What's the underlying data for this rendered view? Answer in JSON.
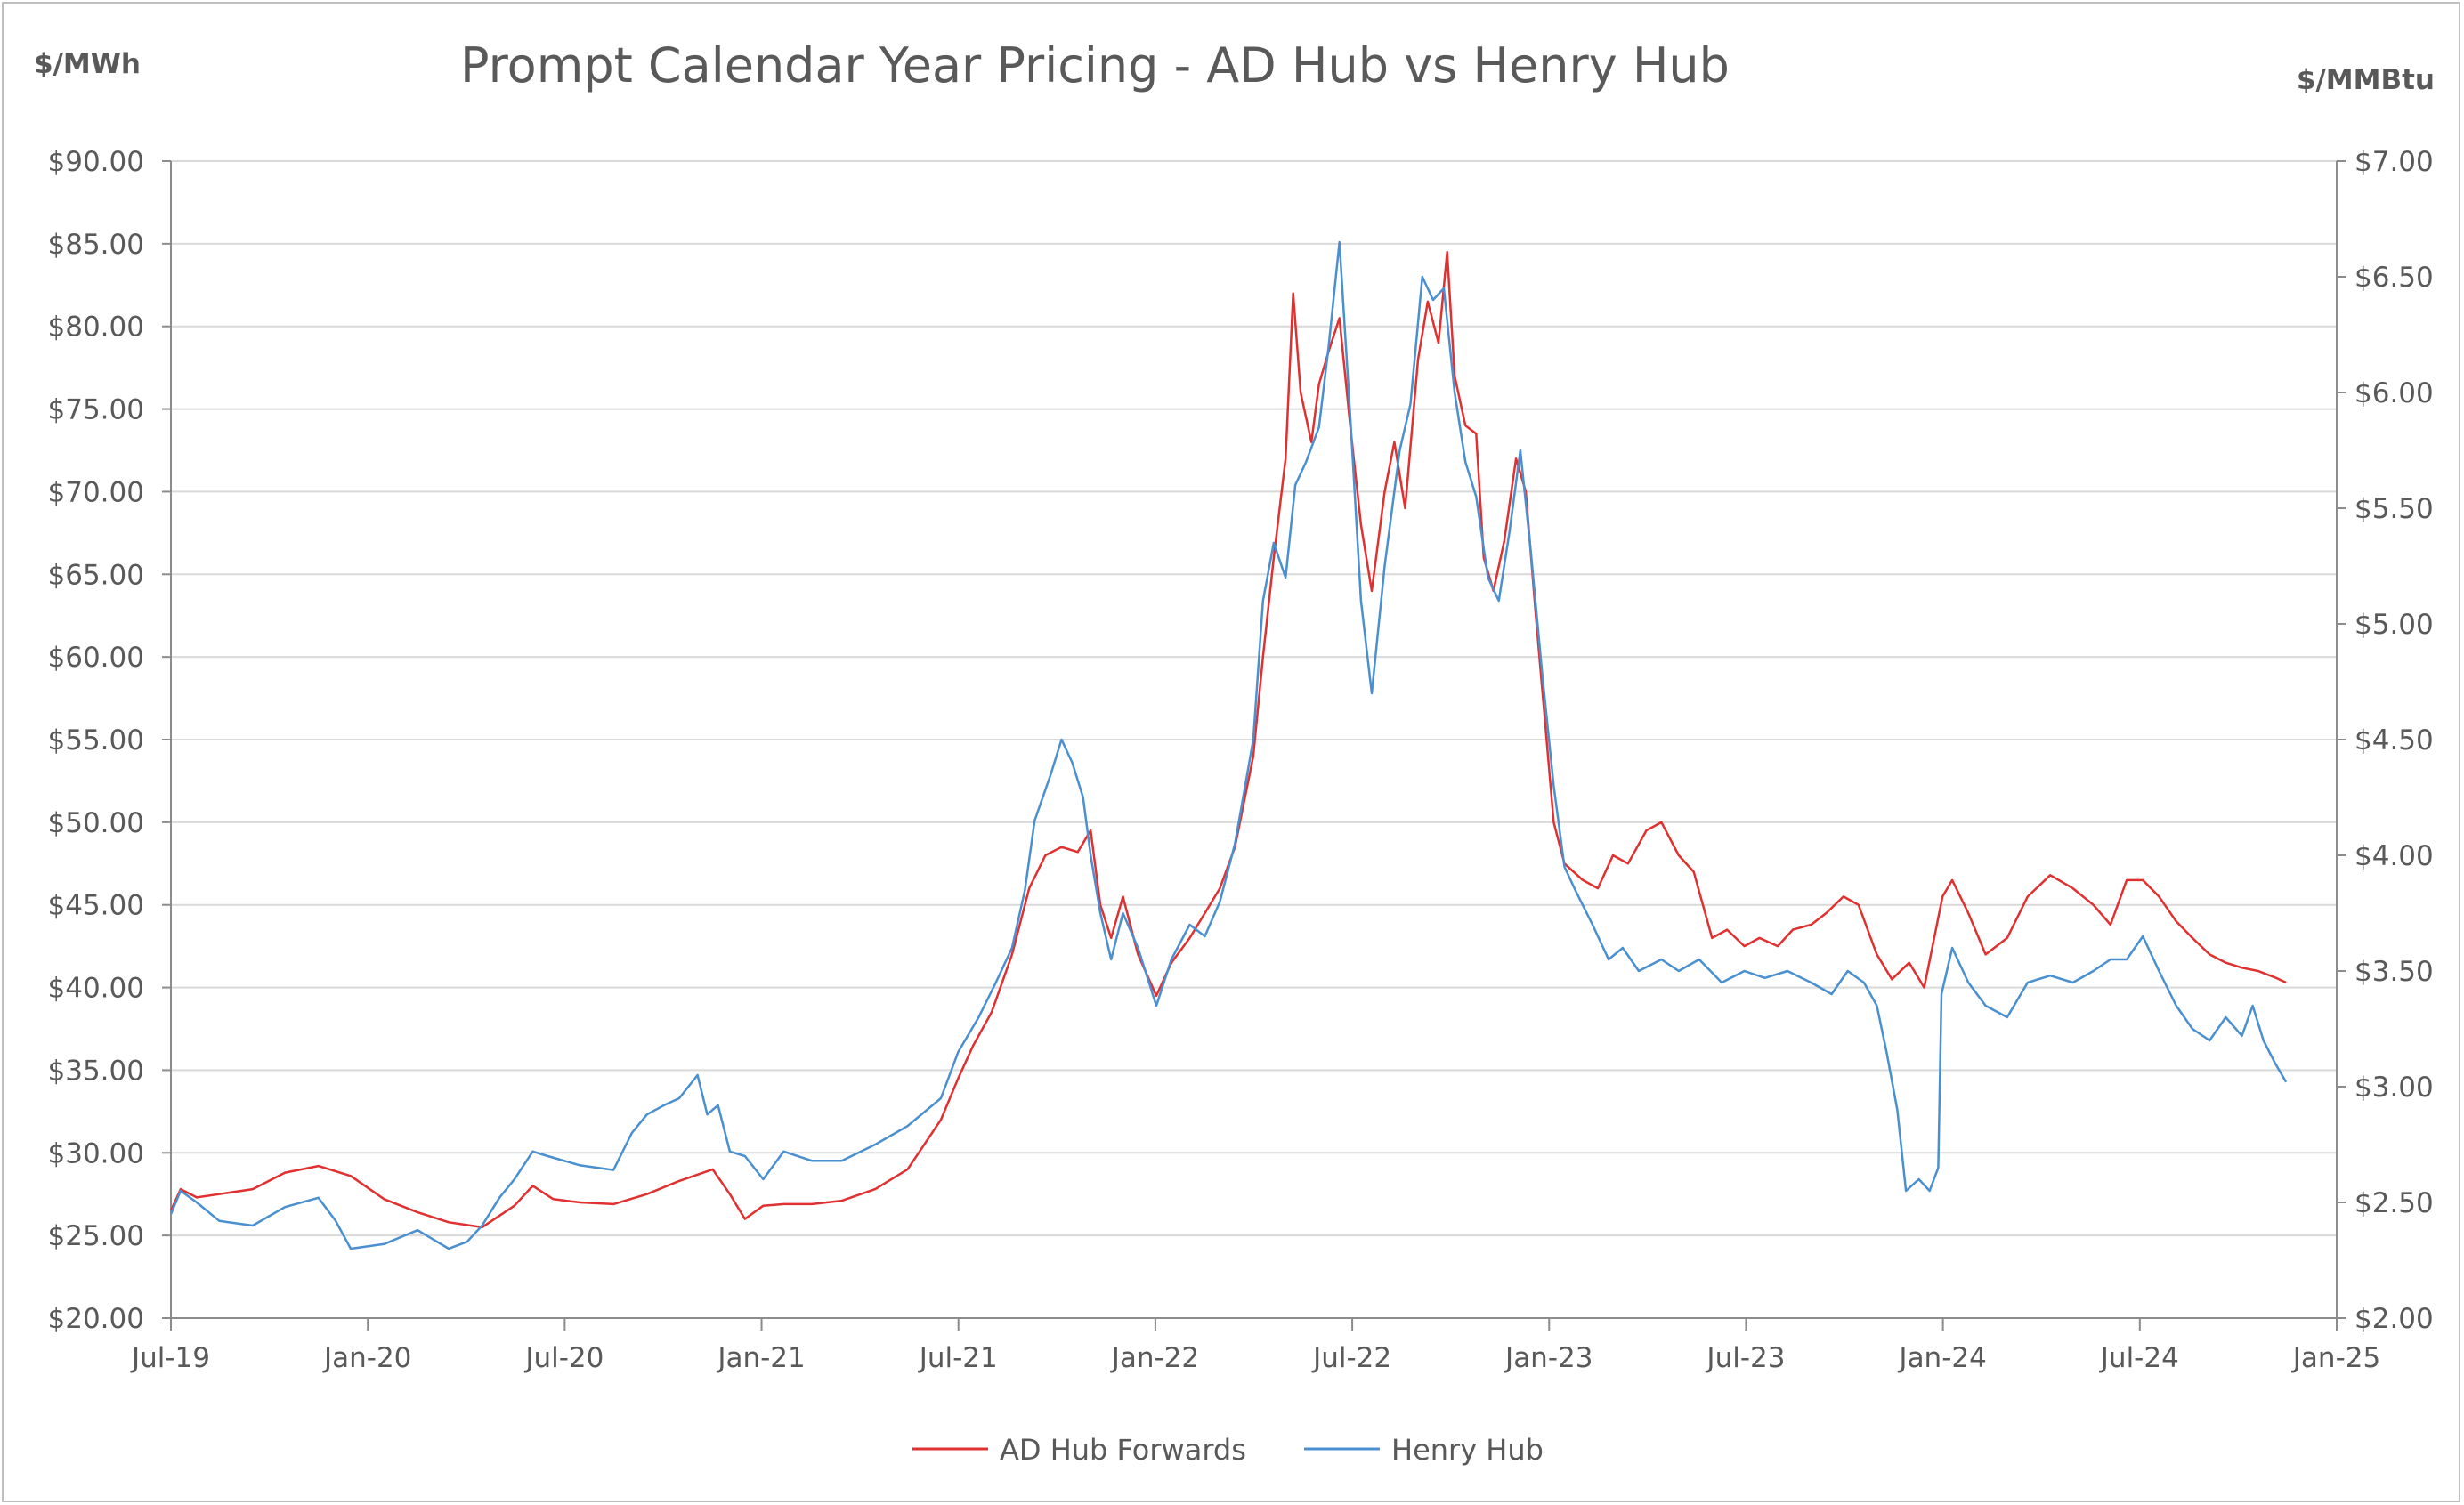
{
  "chart_data": {
    "type": "line",
    "title": "Prompt Calendar Year Pricing - AD Hub vs Henry Hub",
    "ylabel_left": "$/MWh",
    "ylabel_right": "$/MMBtu",
    "ylim_left": [
      20,
      90
    ],
    "ylim_right": [
      2.0,
      7.0
    ],
    "xlim": [
      "2019-07-01",
      "2025-01-01"
    ],
    "x_ticks": [
      "Jul-19",
      "Jan-20",
      "Jul-20",
      "Jan-21",
      "Jul-21",
      "Jan-22",
      "Jul-22",
      "Jan-23",
      "Jul-23",
      "Jan-24",
      "Jul-24",
      "Jan-25"
    ],
    "y_ticks_left": [
      "$20.00",
      "$25.00",
      "$30.00",
      "$35.00",
      "$40.00",
      "$45.00",
      "$50.00",
      "$55.00",
      "$60.00",
      "$65.00",
      "$70.00",
      "$75.00",
      "$80.00",
      "$85.00",
      "$90.00"
    ],
    "y_ticks_right": [
      "$2.00",
      "$2.50",
      "$3.00",
      "$3.50",
      "$4.00",
      "$4.50",
      "$5.00",
      "$5.50",
      "$6.00",
      "$6.50",
      "$7.00"
    ],
    "legend_position": "bottom",
    "grid": "horizontal",
    "series": [
      {
        "name": "AD Hub Forwards",
        "axis": "left",
        "color": "#e03030",
        "points": [
          [
            "2019-07-01",
            26.5
          ],
          [
            "2019-07-10",
            27.8
          ],
          [
            "2019-07-25",
            27.3
          ],
          [
            "2019-08-15",
            27.5
          ],
          [
            "2019-09-15",
            27.8
          ],
          [
            "2019-10-15",
            28.8
          ],
          [
            "2019-11-15",
            29.2
          ],
          [
            "2019-12-15",
            28.6
          ],
          [
            "2020-01-15",
            27.2
          ],
          [
            "2020-02-15",
            26.4
          ],
          [
            "2020-03-15",
            25.8
          ],
          [
            "2020-04-15",
            25.5
          ],
          [
            "2020-05-15",
            26.8
          ],
          [
            "2020-06-01",
            28.0
          ],
          [
            "2020-06-20",
            27.2
          ],
          [
            "2020-07-15",
            27.0
          ],
          [
            "2020-08-15",
            26.9
          ],
          [
            "2020-09-15",
            27.5
          ],
          [
            "2020-10-15",
            28.3
          ],
          [
            "2020-11-15",
            29.0
          ],
          [
            "2020-12-01",
            27.5
          ],
          [
            "2020-12-15",
            26.0
          ],
          [
            "2021-01-01",
            26.8
          ],
          [
            "2021-01-20",
            26.9
          ],
          [
            "2021-02-15",
            26.9
          ],
          [
            "2021-03-15",
            27.1
          ],
          [
            "2021-04-15",
            27.8
          ],
          [
            "2021-05-15",
            29.0
          ],
          [
            "2021-06-15",
            32.0
          ],
          [
            "2021-07-01",
            34.5
          ],
          [
            "2021-07-15",
            36.5
          ],
          [
            "2021-08-01",
            38.5
          ],
          [
            "2021-08-20",
            42.0
          ],
          [
            "2021-09-05",
            46.0
          ],
          [
            "2021-09-20",
            48.0
          ],
          [
            "2021-10-05",
            48.5
          ],
          [
            "2021-10-20",
            48.2
          ],
          [
            "2021-11-01",
            49.5
          ],
          [
            "2021-11-10",
            45.0
          ],
          [
            "2021-11-20",
            43.0
          ],
          [
            "2021-12-01",
            45.5
          ],
          [
            "2021-12-15",
            42.0
          ],
          [
            "2022-01-01",
            39.5
          ],
          [
            "2022-01-15",
            41.5
          ],
          [
            "2022-02-01",
            43.0
          ],
          [
            "2022-02-15",
            44.5
          ],
          [
            "2022-03-01",
            46.0
          ],
          [
            "2022-03-15",
            48.5
          ],
          [
            "2022-04-01",
            54.0
          ],
          [
            "2022-04-10",
            60.0
          ],
          [
            "2022-04-20",
            66.0
          ],
          [
            "2022-05-01",
            72.0
          ],
          [
            "2022-05-08",
            82.0
          ],
          [
            "2022-05-15",
            76.0
          ],
          [
            "2022-05-25",
            73.0
          ],
          [
            "2022-06-01",
            76.5
          ],
          [
            "2022-06-10",
            78.5
          ],
          [
            "2022-06-20",
            80.5
          ],
          [
            "2022-06-30",
            74.0
          ],
          [
            "2022-07-10",
            68.0
          ],
          [
            "2022-07-20",
            64.0
          ],
          [
            "2022-08-01",
            70.0
          ],
          [
            "2022-08-10",
            73.0
          ],
          [
            "2022-08-20",
            69.0
          ],
          [
            "2022-09-01",
            78.0
          ],
          [
            "2022-09-10",
            81.5
          ],
          [
            "2022-09-20",
            79.0
          ],
          [
            "2022-09-28",
            84.5
          ],
          [
            "2022-10-05",
            77.0
          ],
          [
            "2022-10-15",
            74.0
          ],
          [
            "2022-10-25",
            73.5
          ],
          [
            "2022-11-01",
            66.0
          ],
          [
            "2022-11-10",
            64.0
          ],
          [
            "2022-11-20",
            67.0
          ],
          [
            "2022-12-01",
            72.0
          ],
          [
            "2022-12-10",
            70.0
          ],
          [
            "2022-12-20",
            62.0
          ],
          [
            "2022-12-28",
            56.0
          ],
          [
            "2023-01-05",
            50.0
          ],
          [
            "2023-01-15",
            47.5
          ],
          [
            "2023-02-01",
            46.5
          ],
          [
            "2023-02-15",
            46.0
          ],
          [
            "2023-03-01",
            48.0
          ],
          [
            "2023-03-15",
            47.5
          ],
          [
            "2023-04-01",
            49.5
          ],
          [
            "2023-04-15",
            50.0
          ],
          [
            "2023-05-01",
            48.0
          ],
          [
            "2023-05-15",
            47.0
          ],
          [
            "2023-06-01",
            43.0
          ],
          [
            "2023-06-15",
            43.5
          ],
          [
            "2023-07-01",
            42.5
          ],
          [
            "2023-07-15",
            43.0
          ],
          [
            "2023-08-01",
            42.5
          ],
          [
            "2023-08-15",
            43.5
          ],
          [
            "2023-09-01",
            43.8
          ],
          [
            "2023-09-15",
            44.5
          ],
          [
            "2023-10-01",
            45.5
          ],
          [
            "2023-10-15",
            45.0
          ],
          [
            "2023-11-01",
            42.0
          ],
          [
            "2023-11-15",
            40.5
          ],
          [
            "2023-12-01",
            41.5
          ],
          [
            "2023-12-15",
            40.0
          ],
          [
            "2024-01-01",
            45.5
          ],
          [
            "2024-01-10",
            46.5
          ],
          [
            "2024-01-25",
            44.5
          ],
          [
            "2024-02-10",
            42.0
          ],
          [
            "2024-03-01",
            43.0
          ],
          [
            "2024-03-20",
            45.5
          ],
          [
            "2024-04-10",
            46.8
          ],
          [
            "2024-05-01",
            46.0
          ],
          [
            "2024-05-20",
            45.0
          ],
          [
            "2024-06-05",
            43.8
          ],
          [
            "2024-06-20",
            46.5
          ],
          [
            "2024-07-05",
            46.5
          ],
          [
            "2024-07-20",
            45.5
          ],
          [
            "2024-08-05",
            44.0
          ],
          [
            "2024-08-20",
            43.0
          ],
          [
            "2024-09-05",
            42.0
          ],
          [
            "2024-09-20",
            41.5
          ],
          [
            "2024-10-05",
            41.2
          ],
          [
            "2024-10-20",
            41.0
          ],
          [
            "2024-11-05",
            40.6
          ],
          [
            "2024-11-15",
            40.3
          ]
        ]
      },
      {
        "name": "Henry Hub",
        "axis": "right",
        "color": "#4a90d0",
        "points": [
          [
            "2019-07-01",
            2.45
          ],
          [
            "2019-07-10",
            2.55
          ],
          [
            "2019-07-25",
            2.5
          ],
          [
            "2019-08-15",
            2.42
          ],
          [
            "2019-09-15",
            2.4
          ],
          [
            "2019-10-15",
            2.48
          ],
          [
            "2019-11-15",
            2.52
          ],
          [
            "2019-12-01",
            2.42
          ],
          [
            "2019-12-15",
            2.3
          ],
          [
            "2020-01-15",
            2.32
          ],
          [
            "2020-02-15",
            2.38
          ],
          [
            "2020-03-15",
            2.3
          ],
          [
            "2020-04-01",
            2.33
          ],
          [
            "2020-04-15",
            2.4
          ],
          [
            "2020-05-01",
            2.52
          ],
          [
            "2020-05-15",
            2.6
          ],
          [
            "2020-06-01",
            2.72
          ],
          [
            "2020-06-15",
            2.7
          ],
          [
            "2020-07-15",
            2.66
          ],
          [
            "2020-08-15",
            2.64
          ],
          [
            "2020-09-01",
            2.8
          ],
          [
            "2020-09-15",
            2.88
          ],
          [
            "2020-10-01",
            2.92
          ],
          [
            "2020-10-15",
            2.95
          ],
          [
            "2020-11-01",
            3.05
          ],
          [
            "2020-11-10",
            2.88
          ],
          [
            "2020-11-20",
            2.92
          ],
          [
            "2020-12-01",
            2.72
          ],
          [
            "2020-12-15",
            2.7
          ],
          [
            "2021-01-01",
            2.6
          ],
          [
            "2021-01-20",
            2.72
          ],
          [
            "2021-02-15",
            2.68
          ],
          [
            "2021-03-15",
            2.68
          ],
          [
            "2021-04-15",
            2.75
          ],
          [
            "2021-05-15",
            2.83
          ],
          [
            "2021-06-15",
            2.95
          ],
          [
            "2021-07-01",
            3.15
          ],
          [
            "2021-07-20",
            3.3
          ],
          [
            "2021-08-05",
            3.45
          ],
          [
            "2021-08-20",
            3.6
          ],
          [
            "2021-09-01",
            3.85
          ],
          [
            "2021-09-10",
            4.15
          ],
          [
            "2021-09-25",
            4.35
          ],
          [
            "2021-10-05",
            4.5
          ],
          [
            "2021-10-15",
            4.4
          ],
          [
            "2021-10-25",
            4.25
          ],
          [
            "2021-11-01",
            4.0
          ],
          [
            "2021-11-10",
            3.75
          ],
          [
            "2021-11-20",
            3.55
          ],
          [
            "2021-12-01",
            3.75
          ],
          [
            "2021-12-15",
            3.6
          ],
          [
            "2022-01-01",
            3.35
          ],
          [
            "2022-01-15",
            3.55
          ],
          [
            "2022-02-01",
            3.7
          ],
          [
            "2022-02-15",
            3.65
          ],
          [
            "2022-03-01",
            3.8
          ],
          [
            "2022-03-15",
            4.05
          ],
          [
            "2022-04-01",
            4.5
          ],
          [
            "2022-04-10",
            5.1
          ],
          [
            "2022-04-20",
            5.35
          ],
          [
            "2022-05-01",
            5.2
          ],
          [
            "2022-05-10",
            5.6
          ],
          [
            "2022-05-20",
            5.7
          ],
          [
            "2022-06-01",
            5.85
          ],
          [
            "2022-06-10",
            6.2
          ],
          [
            "2022-06-20",
            6.65
          ],
          [
            "2022-06-30",
            5.9
          ],
          [
            "2022-07-10",
            5.1
          ],
          [
            "2022-07-20",
            4.7
          ],
          [
            "2022-08-01",
            5.25
          ],
          [
            "2022-08-15",
            5.75
          ],
          [
            "2022-08-25",
            5.95
          ],
          [
            "2022-09-05",
            6.5
          ],
          [
            "2022-09-15",
            6.4
          ],
          [
            "2022-09-25",
            6.45
          ],
          [
            "2022-10-05",
            6.0
          ],
          [
            "2022-10-15",
            5.7
          ],
          [
            "2022-10-25",
            5.55
          ],
          [
            "2022-11-05",
            5.2
          ],
          [
            "2022-11-15",
            5.1
          ],
          [
            "2022-11-25",
            5.4
          ],
          [
            "2022-12-05",
            5.75
          ],
          [
            "2022-12-15",
            5.3
          ],
          [
            "2022-12-25",
            4.8
          ],
          [
            "2023-01-05",
            4.3
          ],
          [
            "2023-01-15",
            3.95
          ],
          [
            "2023-01-25",
            3.85
          ],
          [
            "2023-02-10",
            3.7
          ],
          [
            "2023-02-25",
            3.55
          ],
          [
            "2023-03-10",
            3.6
          ],
          [
            "2023-03-25",
            3.5
          ],
          [
            "2023-04-15",
            3.55
          ],
          [
            "2023-05-01",
            3.5
          ],
          [
            "2023-05-20",
            3.55
          ],
          [
            "2023-06-10",
            3.45
          ],
          [
            "2023-07-01",
            3.5
          ],
          [
            "2023-07-20",
            3.47
          ],
          [
            "2023-08-10",
            3.5
          ],
          [
            "2023-09-01",
            3.45
          ],
          [
            "2023-09-20",
            3.4
          ],
          [
            "2023-10-05",
            3.5
          ],
          [
            "2023-10-20",
            3.45
          ],
          [
            "2023-11-01",
            3.35
          ],
          [
            "2023-11-10",
            3.15
          ],
          [
            "2023-11-20",
            2.9
          ],
          [
            "2023-11-28",
            2.55
          ],
          [
            "2023-12-10",
            2.6
          ],
          [
            "2023-12-20",
            2.55
          ],
          [
            "2023-12-28",
            2.65
          ],
          [
            "2023-12-31",
            3.4
          ],
          [
            "2024-01-10",
            3.6
          ],
          [
            "2024-01-25",
            3.45
          ],
          [
            "2024-02-10",
            3.35
          ],
          [
            "2024-03-01",
            3.3
          ],
          [
            "2024-03-20",
            3.45
          ],
          [
            "2024-04-10",
            3.48
          ],
          [
            "2024-05-01",
            3.45
          ],
          [
            "2024-05-20",
            3.5
          ],
          [
            "2024-06-05",
            3.55
          ],
          [
            "2024-06-20",
            3.55
          ],
          [
            "2024-07-05",
            3.65
          ],
          [
            "2024-07-20",
            3.5
          ],
          [
            "2024-08-05",
            3.35
          ],
          [
            "2024-08-20",
            3.25
          ],
          [
            "2024-09-05",
            3.2
          ],
          [
            "2024-09-20",
            3.3
          ],
          [
            "2024-10-05",
            3.22
          ],
          [
            "2024-10-15",
            3.35
          ],
          [
            "2024-10-25",
            3.2
          ],
          [
            "2024-11-05",
            3.1
          ],
          [
            "2024-11-15",
            3.02
          ]
        ]
      }
    ]
  }
}
